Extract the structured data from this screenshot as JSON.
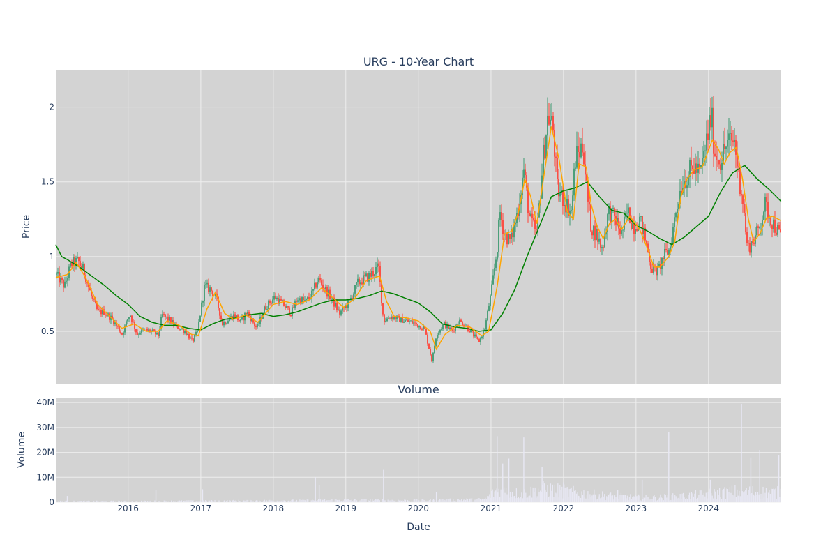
{
  "colors": {
    "plot_bg": "#d3d3d3",
    "grid": "#eeeeee",
    "increasing": "#3d9970",
    "decreasing": "#ff4136",
    "ma_short": "#ffa500",
    "ma_long": "#008000",
    "volume": "#e8e8f4",
    "text": "#2a3f5f"
  },
  "chart_data": [
    {
      "type": "candlestick",
      "title": "URG - 10-Year Chart",
      "xlabel": "",
      "ylabel": "Price",
      "ylim": [
        0.15,
        2.25
      ],
      "xlim": [
        "2015-01-02",
        "2025-01-01"
      ],
      "grid": true,
      "legend": "none",
      "y_ticks": [
        0.5,
        1,
        1.5,
        2
      ],
      "y_tick_labels": [
        "0.5",
        "1",
        "1.5",
        "2"
      ],
      "x_ticks": [
        "2016-01-01",
        "2017-01-01",
        "2018-01-01",
        "2019-01-01",
        "2020-01-01",
        "2021-01-01",
        "2022-01-01",
        "2023-01-01",
        "2024-01-01"
      ],
      "close_path": [
        [
          "2015-01-02",
          0.88
        ],
        [
          "2015-02-15",
          0.8
        ],
        [
          "2015-03-20",
          0.95
        ],
        [
          "2015-04-25",
          0.97
        ],
        [
          "2015-05-25",
          0.9
        ],
        [
          "2015-07-01",
          0.73
        ],
        [
          "2015-08-01",
          0.63
        ],
        [
          "2015-09-01",
          0.63
        ],
        [
          "2015-10-15",
          0.58
        ],
        [
          "2015-12-01",
          0.48
        ],
        [
          "2016-01-10",
          0.62
        ],
        [
          "2016-02-15",
          0.48
        ],
        [
          "2016-03-20",
          0.51
        ],
        [
          "2016-05-01",
          0.5
        ],
        [
          "2016-06-01",
          0.47
        ],
        [
          "2016-06-20",
          0.61
        ],
        [
          "2016-08-01",
          0.57
        ],
        [
          "2016-09-01",
          0.53
        ],
        [
          "2016-10-15",
          0.5
        ],
        [
          "2016-11-20",
          0.43
        ],
        [
          "2016-12-15",
          0.5
        ],
        [
          "2017-01-20",
          0.8
        ],
        [
          "2017-02-20",
          0.78
        ],
        [
          "2017-03-20",
          0.72
        ],
        [
          "2017-04-20",
          0.55
        ],
        [
          "2017-05-20",
          0.58
        ],
        [
          "2017-06-20",
          0.61
        ],
        [
          "2017-07-20",
          0.56
        ],
        [
          "2017-08-20",
          0.63
        ],
        [
          "2017-10-10",
          0.52
        ],
        [
          "2017-11-20",
          0.66
        ],
        [
          "2018-01-10",
          0.73
        ],
        [
          "2018-02-20",
          0.68
        ],
        [
          "2018-04-01",
          0.62
        ],
        [
          "2018-05-01",
          0.72
        ],
        [
          "2018-06-15",
          0.7
        ],
        [
          "2018-07-15",
          0.75
        ],
        [
          "2018-08-15",
          0.85
        ],
        [
          "2018-09-15",
          0.79
        ],
        [
          "2018-10-15",
          0.73
        ],
        [
          "2018-12-01",
          0.62
        ],
        [
          "2019-01-20",
          0.7
        ],
        [
          "2019-03-01",
          0.82
        ],
        [
          "2019-04-01",
          0.85
        ],
        [
          "2019-05-01",
          0.87
        ],
        [
          "2019-06-15",
          0.93
        ],
        [
          "2019-07-10",
          0.57
        ],
        [
          "2019-08-15",
          0.6
        ],
        [
          "2019-10-01",
          0.58
        ],
        [
          "2019-12-01",
          0.56
        ],
        [
          "2020-02-01",
          0.52
        ],
        [
          "2020-03-10",
          0.3
        ],
        [
          "2020-04-01",
          0.48
        ],
        [
          "2020-05-10",
          0.55
        ],
        [
          "2020-06-20",
          0.5
        ],
        [
          "2020-07-20",
          0.57
        ],
        [
          "2020-08-20",
          0.55
        ],
        [
          "2020-09-20",
          0.5
        ],
        [
          "2020-11-01",
          0.43
        ],
        [
          "2020-12-01",
          0.52
        ],
        [
          "2021-01-01",
          0.75
        ],
        [
          "2021-02-01",
          1.05
        ],
        [
          "2021-02-15",
          1.3
        ],
        [
          "2021-03-10",
          1.15
        ],
        [
          "2021-04-10",
          1.1
        ],
        [
          "2021-05-15",
          1.3
        ],
        [
          "2021-06-15",
          1.58
        ],
        [
          "2021-07-15",
          1.25
        ],
        [
          "2021-08-20",
          1.15
        ],
        [
          "2021-09-20",
          1.65
        ],
        [
          "2021-10-15",
          1.95
        ],
        [
          "2021-11-10",
          1.85
        ],
        [
          "2021-12-01",
          1.45
        ],
        [
          "2022-01-15",
          1.35
        ],
        [
          "2022-02-10",
          1.3
        ],
        [
          "2022-03-01",
          1.65
        ],
        [
          "2022-04-10",
          1.75
        ],
        [
          "2022-05-01",
          1.4
        ],
        [
          "2022-05-20",
          1.2
        ],
        [
          "2022-06-15",
          1.15
        ],
        [
          "2022-07-15",
          1.05
        ],
        [
          "2022-08-15",
          1.3
        ],
        [
          "2022-09-20",
          1.25
        ],
        [
          "2022-10-20",
          1.15
        ],
        [
          "2022-11-20",
          1.3
        ],
        [
          "2022-12-20",
          1.2
        ],
        [
          "2023-01-20",
          1.25
        ],
        [
          "2023-02-20",
          1.1
        ],
        [
          "2023-03-20",
          0.92
        ],
        [
          "2023-04-20",
          0.9
        ],
        [
          "2023-05-20",
          1.0
        ],
        [
          "2023-06-20",
          1.05
        ],
        [
          "2023-07-20",
          1.3
        ],
        [
          "2023-08-20",
          1.5
        ],
        [
          "2023-09-20",
          1.55
        ],
        [
          "2023-10-20",
          1.6
        ],
        [
          "2023-11-20",
          1.55
        ],
        [
          "2023-12-20",
          1.75
        ],
        [
          "2024-01-15",
          1.95
        ],
        [
          "2024-02-01",
          1.7
        ],
        [
          "2024-03-01",
          1.65
        ],
        [
          "2024-04-01",
          1.75
        ],
        [
          "2024-05-10",
          1.78
        ],
        [
          "2024-06-01",
          1.55
        ],
        [
          "2024-06-20",
          1.4
        ],
        [
          "2024-07-15",
          1.05
        ],
        [
          "2024-08-10",
          1.1
        ],
        [
          "2024-09-10",
          1.18
        ],
        [
          "2024-10-10",
          1.35
        ],
        [
          "2024-11-10",
          1.25
        ],
        [
          "2024-12-31",
          1.13
        ]
      ],
      "ma_short_path": [
        [
          "2015-01-02",
          0.86
        ],
        [
          "2015-03-01",
          0.88
        ],
        [
          "2015-04-15",
          0.96
        ],
        [
          "2015-06-01",
          0.86
        ],
        [
          "2015-08-01",
          0.68
        ],
        [
          "2015-10-01",
          0.6
        ],
        [
          "2015-12-01",
          0.52
        ],
        [
          "2016-02-01",
          0.55
        ],
        [
          "2016-04-01",
          0.5
        ],
        [
          "2016-06-01",
          0.5
        ],
        [
          "2016-07-15",
          0.57
        ],
        [
          "2016-09-15",
          0.54
        ],
        [
          "2016-11-15",
          0.48
        ],
        [
          "2016-12-20",
          0.47
        ],
        [
          "2017-02-01",
          0.65
        ],
        [
          "2017-03-15",
          0.76
        ],
        [
          "2017-05-01",
          0.62
        ],
        [
          "2017-06-15",
          0.58
        ],
        [
          "2017-08-15",
          0.61
        ],
        [
          "2017-10-15",
          0.56
        ],
        [
          "2018-01-01",
          0.68
        ],
        [
          "2018-03-01",
          0.7
        ],
        [
          "2018-05-01",
          0.68
        ],
        [
          "2018-07-01",
          0.71
        ],
        [
          "2018-09-01",
          0.79
        ],
        [
          "2018-11-01",
          0.72
        ],
        [
          "2018-12-20",
          0.66
        ],
        [
          "2019-02-15",
          0.72
        ],
        [
          "2019-04-15",
          0.84
        ],
        [
          "2019-06-20",
          0.87
        ],
        [
          "2019-07-25",
          0.7
        ],
        [
          "2019-09-01",
          0.6
        ],
        [
          "2019-11-01",
          0.59
        ],
        [
          "2020-01-01",
          0.57
        ],
        [
          "2020-03-01",
          0.5
        ],
        [
          "2020-04-01",
          0.38
        ],
        [
          "2020-05-15",
          0.48
        ],
        [
          "2020-07-15",
          0.54
        ],
        [
          "2020-09-15",
          0.53
        ],
        [
          "2020-11-15",
          0.47
        ],
        [
          "2020-12-20",
          0.5
        ],
        [
          "2021-02-01",
          0.8
        ],
        [
          "2021-03-10",
          1.15
        ],
        [
          "2021-04-15",
          1.17
        ],
        [
          "2021-05-20",
          1.3
        ],
        [
          "2021-06-20",
          1.52
        ],
        [
          "2021-07-20",
          1.4
        ],
        [
          "2021-08-20",
          1.22
        ],
        [
          "2021-10-01",
          1.6
        ],
        [
          "2021-11-01",
          1.87
        ],
        [
          "2021-12-10",
          1.65
        ],
        [
          "2022-01-20",
          1.3
        ],
        [
          "2022-02-20",
          1.25
        ],
        [
          "2022-03-20",
          1.62
        ],
        [
          "2022-04-25",
          1.6
        ],
        [
          "2022-05-20",
          1.35
        ],
        [
          "2022-06-20",
          1.2
        ],
        [
          "2022-07-20",
          1.12
        ],
        [
          "2022-08-20",
          1.22
        ],
        [
          "2022-09-20",
          1.25
        ],
        [
          "2022-10-20",
          1.18
        ],
        [
          "2022-12-01",
          1.27
        ],
        [
          "2023-01-20",
          1.18
        ],
        [
          "2023-03-01",
          1.05
        ],
        [
          "2023-04-01",
          0.93
        ],
        [
          "2023-05-01",
          0.93
        ],
        [
          "2023-06-15",
          1.0
        ],
        [
          "2023-07-15",
          1.1
        ],
        [
          "2023-08-15",
          1.4
        ],
        [
          "2023-09-15",
          1.52
        ],
        [
          "2023-10-20",
          1.58
        ],
        [
          "2023-12-01",
          1.6
        ],
        [
          "2024-01-20",
          1.78
        ],
        [
          "2024-02-20",
          1.72
        ],
        [
          "2024-03-20",
          1.62
        ],
        [
          "2024-04-20",
          1.7
        ],
        [
          "2024-05-20",
          1.73
        ],
        [
          "2024-06-20",
          1.52
        ],
        [
          "2024-07-20",
          1.25
        ],
        [
          "2024-08-15",
          1.1
        ],
        [
          "2024-09-15",
          1.15
        ],
        [
          "2024-10-20",
          1.26
        ],
        [
          "2024-11-20",
          1.27
        ],
        [
          "2024-12-31",
          1.24
        ]
      ],
      "ma_long_path": [
        [
          "2015-01-02",
          1.08
        ],
        [
          "2015-02-01",
          1.0
        ],
        [
          "2015-03-01",
          0.98
        ],
        [
          "2015-05-01",
          0.93
        ],
        [
          "2015-07-01",
          0.87
        ],
        [
          "2015-09-01",
          0.81
        ],
        [
          "2015-11-01",
          0.74
        ],
        [
          "2016-01-01",
          0.68
        ],
        [
          "2016-03-01",
          0.6
        ],
        [
          "2016-05-01",
          0.56
        ],
        [
          "2016-07-01",
          0.54
        ],
        [
          "2016-09-01",
          0.54
        ],
        [
          "2016-11-01",
          0.52
        ],
        [
          "2017-01-01",
          0.51
        ],
        [
          "2017-03-01",
          0.55
        ],
        [
          "2017-05-01",
          0.58
        ],
        [
          "2017-07-01",
          0.59
        ],
        [
          "2017-09-01",
          0.61
        ],
        [
          "2017-11-01",
          0.62
        ],
        [
          "2018-01-01",
          0.6
        ],
        [
          "2018-03-01",
          0.61
        ],
        [
          "2018-05-01",
          0.63
        ],
        [
          "2018-07-01",
          0.66
        ],
        [
          "2018-09-01",
          0.69
        ],
        [
          "2018-11-01",
          0.71
        ],
        [
          "2019-01-01",
          0.71
        ],
        [
          "2019-03-01",
          0.72
        ],
        [
          "2019-05-01",
          0.74
        ],
        [
          "2019-07-01",
          0.77
        ],
        [
          "2019-09-01",
          0.75
        ],
        [
          "2019-11-01",
          0.72
        ],
        [
          "2020-01-01",
          0.69
        ],
        [
          "2020-03-01",
          0.63
        ],
        [
          "2020-05-01",
          0.55
        ],
        [
          "2020-07-01",
          0.53
        ],
        [
          "2020-09-01",
          0.52
        ],
        [
          "2020-11-01",
          0.5
        ],
        [
          "2021-01-01",
          0.51
        ],
        [
          "2021-03-01",
          0.62
        ],
        [
          "2021-05-01",
          0.78
        ],
        [
          "2021-07-01",
          1.0
        ],
        [
          "2021-09-01",
          1.2
        ],
        [
          "2021-11-01",
          1.4
        ],
        [
          "2022-01-01",
          1.44
        ],
        [
          "2022-03-01",
          1.46
        ],
        [
          "2022-05-01",
          1.5
        ],
        [
          "2022-07-01",
          1.4
        ],
        [
          "2022-09-01",
          1.31
        ],
        [
          "2022-11-01",
          1.29
        ],
        [
          "2023-01-01",
          1.21
        ],
        [
          "2023-03-01",
          1.17
        ],
        [
          "2023-05-01",
          1.12
        ],
        [
          "2023-07-01",
          1.08
        ],
        [
          "2023-09-01",
          1.13
        ],
        [
          "2023-11-01",
          1.2
        ],
        [
          "2024-01-01",
          1.27
        ],
        [
          "2024-03-01",
          1.43
        ],
        [
          "2024-05-01",
          1.56
        ],
        [
          "2024-07-01",
          1.61
        ],
        [
          "2024-09-01",
          1.52
        ],
        [
          "2024-11-01",
          1.45
        ],
        [
          "2024-12-31",
          1.37
        ]
      ]
    },
    {
      "type": "bar",
      "title": "Volume",
      "xlabel": "Date",
      "ylabel": "Volume",
      "ylim": [
        0,
        42000000
      ],
      "grid": true,
      "legend": "none",
      "y_ticks": [
        0,
        10000000,
        20000000,
        30000000,
        40000000
      ],
      "y_tick_labels": [
        "0",
        "10M",
        "20M",
        "30M",
        "40M"
      ],
      "x_ticks": [
        "2016-01-01",
        "2017-01-01",
        "2018-01-01",
        "2019-01-01",
        "2020-01-01",
        "2021-01-01",
        "2022-01-01",
        "2023-01-01",
        "2024-01-01"
      ],
      "x_tick_labels": [
        "2016",
        "2017",
        "2018",
        "2019",
        "2020",
        "2021",
        "2022",
        "2023",
        "2024"
      ],
      "baseline_path": [
        [
          "2015-01-02",
          400000
        ],
        [
          "2016-01-01",
          400000
        ],
        [
          "2018-06-01",
          700000
        ],
        [
          "2019-01-01",
          900000
        ],
        [
          "2020-01-01",
          700000
        ],
        [
          "2020-12-01",
          1200000
        ],
        [
          "2021-02-01",
          5000000
        ],
        [
          "2021-06-01",
          3500000
        ],
        [
          "2021-10-01",
          5500000
        ],
        [
          "2022-03-01",
          4000000
        ],
        [
          "2022-09-01",
          2500000
        ],
        [
          "2023-03-01",
          1800000
        ],
        [
          "2023-09-01",
          2500000
        ],
        [
          "2024-01-01",
          3500000
        ],
        [
          "2024-06-01",
          4500000
        ],
        [
          "2024-12-31",
          4000000
        ]
      ],
      "spikes": [
        [
          "2015-03-01",
          2500000
        ],
        [
          "2016-05-20",
          4800000
        ],
        [
          "2017-01-10",
          5200000
        ],
        [
          "2018-08-01",
          10000000
        ],
        [
          "2018-08-20",
          7000000
        ],
        [
          "2019-07-10",
          13000000
        ],
        [
          "2020-04-01",
          4000000
        ],
        [
          "2021-02-01",
          26500000
        ],
        [
          "2021-03-01",
          15500000
        ],
        [
          "2021-04-01",
          17500000
        ],
        [
          "2021-06-15",
          26000000
        ],
        [
          "2021-09-15",
          14000000
        ],
        [
          "2022-01-01",
          8000000
        ],
        [
          "2022-10-01",
          5000000
        ],
        [
          "2023-02-01",
          9000000
        ],
        [
          "2023-06-15",
          28000000
        ],
        [
          "2024-01-10",
          9000000
        ],
        [
          "2024-06-15",
          39500000
        ],
        [
          "2024-08-01",
          18000000
        ],
        [
          "2024-09-15",
          21000000
        ],
        [
          "2024-12-20",
          19000000
        ]
      ]
    }
  ]
}
